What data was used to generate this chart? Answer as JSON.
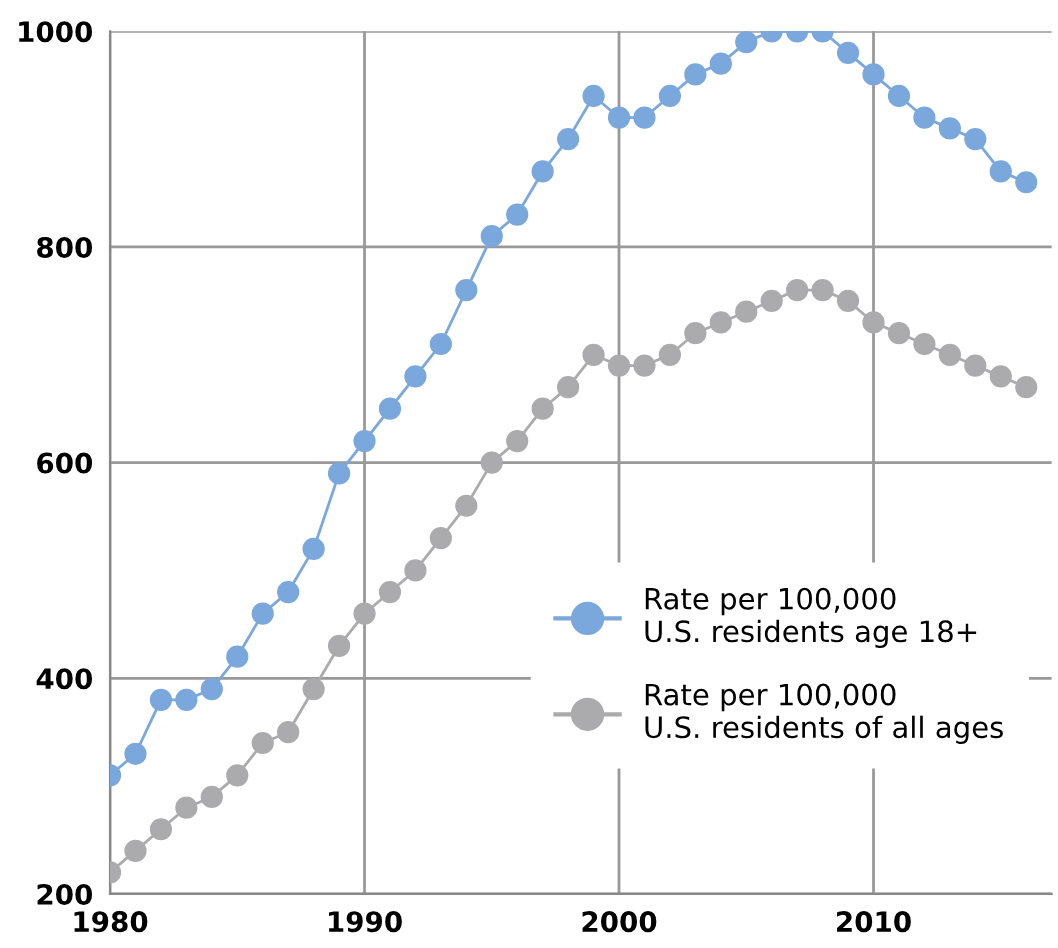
{
  "chart_data": {
    "type": "line",
    "x": [
      1980,
      1981,
      1982,
      1983,
      1984,
      1985,
      1986,
      1987,
      1988,
      1989,
      1990,
      1991,
      1992,
      1993,
      1994,
      1995,
      1996,
      1997,
      1998,
      1999,
      2000,
      2001,
      2002,
      2003,
      2004,
      2005,
      2006,
      2007,
      2008,
      2009,
      2010,
      2011,
      2012,
      2013,
      2014,
      2015,
      2016
    ],
    "series": [
      {
        "name": "Rate per 100,000\nU.S. residents age 18+",
        "color": "#7aa7dc",
        "values": [
          310,
          330,
          380,
          380,
          390,
          420,
          460,
          480,
          520,
          590,
          620,
          650,
          680,
          710,
          760,
          810,
          830,
          870,
          900,
          940,
          920,
          920,
          940,
          960,
          970,
          990,
          1000,
          1000,
          1000,
          980,
          960,
          940,
          920,
          910,
          900,
          870,
          860
        ]
      },
      {
        "name": "Rate per 100,000\nU.S. residents of all ages",
        "color": "#ababad",
        "values": [
          220,
          240,
          260,
          280,
          290,
          310,
          340,
          350,
          390,
          430,
          460,
          480,
          500,
          530,
          560,
          600,
          620,
          650,
          670,
          700,
          690,
          690,
          700,
          720,
          730,
          740,
          750,
          760,
          760,
          750,
          730,
          720,
          710,
          700,
          690,
          680,
          670
        ]
      }
    ],
    "xlim": [
      1980,
      2017
    ],
    "xticks": [
      1980,
      1990,
      2000,
      2010
    ],
    "ylim": [
      200,
      1000
    ],
    "yticks": [
      200,
      400,
      600,
      800,
      1000
    ],
    "grid": true,
    "legend": "bottom right",
    "marker": "circle",
    "line_style": "solid"
  }
}
